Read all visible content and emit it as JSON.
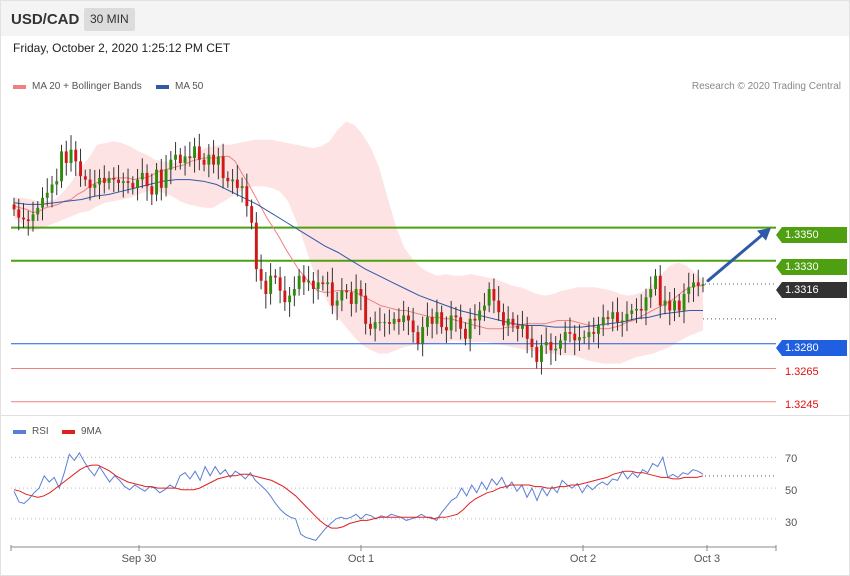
{
  "header": {
    "pair": "USD/CAD",
    "timeframe": "30 MIN"
  },
  "datetime": "Friday, October 2, 2020 1:25:12 PM CET",
  "legend": {
    "main": [
      {
        "label": "MA 20 + Bollinger Bands",
        "color": "#f08080"
      },
      {
        "label": "MA 50",
        "color": "#2e5aa8"
      }
    ],
    "rsi": [
      {
        "label": "RSI",
        "color": "#5b7fd6"
      },
      {
        "label": "9MA",
        "color": "#e02020"
      }
    ]
  },
  "credit": "Research © 2020 Trading Central",
  "levels": {
    "r2": {
      "value": "1.3350",
      "color": "#4ea010"
    },
    "r1": {
      "value": "1.3330",
      "color": "#4ea010"
    },
    "last": {
      "value": "1.3316",
      "color": "#333333"
    },
    "s1": {
      "value": "1.3280",
      "color": "#1f5fe0"
    },
    "s2": {
      "value": "1.3265",
      "color": "#e01010"
    },
    "s3": {
      "value": "1.3245",
      "color": "#e01010"
    }
  },
  "rsi_levels": [
    "70",
    "50",
    "30"
  ],
  "x_labels": [
    "Sep 30",
    "Oct 1",
    "Oct 2",
    "Oct 3"
  ],
  "chart_data": [
    {
      "type": "candlestick",
      "title": "USD/CAD",
      "timeframe": "30 MIN",
      "ylim": [
        1.324,
        1.3427
      ],
      "horizontal_levels": [
        1.335,
        1.333,
        1.3316,
        1.328,
        1.3265,
        1.3245
      ],
      "last_price": 1.3316,
      "x_labels": [
        "Sep 30",
        "Oct 1",
        "Oct 2",
        "Oct 3"
      ],
      "forecast_arrow": {
        "from": 1.3318,
        "to": 1.335
      },
      "indicators": [
        "MA 20 + Bollinger Bands",
        "MA 50"
      ],
      "close": [
        1.3361,
        1.3356,
        1.3355,
        1.3354,
        1.3358,
        1.3362,
        1.3368,
        1.3371,
        1.3376,
        1.3378,
        1.3396,
        1.3389,
        1.3397,
        1.339,
        1.3381,
        1.3379,
        1.3374,
        1.3376,
        1.338,
        1.3377,
        1.338,
        1.3379,
        1.3377,
        1.3378,
        1.3377,
        1.3374,
        1.3379,
        1.3383,
        1.3375,
        1.337,
        1.3385,
        1.3374,
        1.3385,
        1.3391,
        1.3394,
        1.3389,
        1.3393,
        1.3392,
        1.3399,
        1.3391,
        1.3388,
        1.3394,
        1.3388,
        1.3393,
        1.338,
        1.3378,
        1.3379,
        1.3374,
        1.3375,
        1.3363,
        1.3353,
        1.3325,
        1.3318,
        1.331,
        1.3321,
        1.332,
        1.3312,
        1.3305,
        1.3309,
        1.3313,
        1.3321,
        1.3317,
        1.3318,
        1.3313,
        1.3317,
        1.3316,
        1.3317,
        1.3303,
        1.3306,
        1.3312,
        1.3311,
        1.3304,
        1.3313,
        1.3309,
        1.3292,
        1.3289,
        1.3293,
        1.3293,
        1.3293,
        1.3292,
        1.3295,
        1.3293,
        1.3297,
        1.3294,
        1.3287,
        1.328,
        1.329,
        1.3296,
        1.3292,
        1.3299,
        1.329,
        1.3288,
        1.3297,
        1.3296,
        1.3289,
        1.3283,
        1.3295,
        1.3294,
        1.33,
        1.3303,
        1.3313,
        1.3306,
        1.3299,
        1.3291,
        1.3295,
        1.3291,
        1.3289,
        1.3291,
        1.3283,
        1.3278,
        1.3269,
        1.3279,
        1.3281,
        1.3276,
        1.3277,
        1.3282,
        1.3287,
        1.3286,
        1.3282,
        1.3284,
        1.3284,
        1.3287,
        1.3286,
        1.3291,
        1.3296,
        1.3295,
        1.3299,
        1.3293,
        1.3294,
        1.3298,
        1.33,
        1.3301,
        1.33,
        1.3308,
        1.3313,
        1.3321,
        1.3303,
        1.3306,
        1.33,
        1.3306,
        1.33,
        1.331,
        1.3314,
        1.3317,
        1.3315,
        1.3316
      ],
      "ma20": [
        1.3363,
        1.3362,
        1.3361,
        1.3359,
        1.336,
        1.3362,
        1.3363,
        1.3364,
        1.3366,
        1.3367,
        1.337,
        1.3372,
        1.3375,
        1.3377,
        1.3378,
        1.3379,
        1.338,
        1.338,
        1.338,
        1.3379,
        1.338,
        1.338,
        1.3382,
        1.3384,
        1.3385,
        1.3386,
        1.3387,
        1.3388,
        1.339,
        1.3391,
        1.3392,
        1.3392,
        1.3392,
        1.3393,
        1.3393,
        1.339,
        1.3383,
        1.3377,
        1.337,
        1.3363,
        1.3356,
        1.335,
        1.3344,
        1.3337,
        1.3331,
        1.3325,
        1.332,
        1.3316,
        1.3312,
        1.3311,
        1.3311,
        1.3312,
        1.3312,
        1.3312,
        1.3311,
        1.3309,
        1.3307,
        1.3305,
        1.3303,
        1.3302,
        1.3301,
        1.33,
        1.33,
        1.3299,
        1.3298,
        1.3297,
        1.3296,
        1.3296,
        1.3295,
        1.3295,
        1.3294,
        1.3293,
        1.3292,
        1.3291,
        1.329,
        1.3289,
        1.3289,
        1.3289,
        1.329,
        1.329,
        1.3291,
        1.3292,
        1.3292,
        1.3292,
        1.3292,
        1.3293,
        1.3294,
        1.3294,
        1.3294,
        1.3293,
        1.3292,
        1.3291,
        1.329,
        1.3289,
        1.3289,
        1.329,
        1.3291,
        1.3293,
        1.3294,
        1.3296,
        1.3298,
        1.33,
        1.3302,
        1.3304,
        1.3306,
        1.3309,
        1.3312,
        1.3314,
        1.3315,
        1.3315
      ],
      "ma50": [
        1.3365,
        1.3364,
        1.3364,
        1.3365,
        1.3366,
        1.3367,
        1.3369,
        1.337,
        1.3372,
        1.3374,
        1.3376,
        1.3378,
        1.3379,
        1.3379,
        1.3378,
        1.3376,
        1.3372,
        1.3368,
        1.3364,
        1.3359,
        1.3354,
        1.3349,
        1.3344,
        1.3339,
        1.3335,
        1.333,
        1.3325,
        1.3321,
        1.3317,
        1.3313,
        1.3309,
        1.3306,
        1.3303,
        1.33,
        1.3298,
        1.3296,
        1.3294,
        1.3292,
        1.3291,
        1.3291,
        1.329,
        1.329,
        1.329,
        1.3291,
        1.3292,
        1.3293,
        1.3295,
        1.3296,
        1.3298,
        1.3299,
        1.33,
        1.33
      ],
      "bollinger_upper": [
        1.3368,
        1.3368,
        1.3367,
        1.3366,
        1.3366,
        1.3367,
        1.3372,
        1.3378,
        1.3386,
        1.3392,
        1.34,
        1.3401,
        1.3402,
        1.3401,
        1.3399,
        1.3396,
        1.3394,
        1.3391,
        1.339,
        1.3389,
        1.339,
        1.3392,
        1.3395,
        1.3398,
        1.3399,
        1.34,
        1.34,
        1.3401,
        1.3402,
        1.3403,
        1.3403,
        1.3403,
        1.3402,
        1.3401,
        1.34,
        1.3399,
        1.3398,
        1.3399,
        1.3402,
        1.3409,
        1.3414,
        1.3412,
        1.3406,
        1.3398,
        1.3386,
        1.3368,
        1.3351,
        1.3338,
        1.3331,
        1.3326,
        1.3323,
        1.3321,
        1.3322,
        1.3321,
        1.3321,
        1.3322,
        1.3321,
        1.332,
        1.3319,
        1.3317,
        1.3315,
        1.3314,
        1.3312,
        1.331,
        1.3309,
        1.331,
        1.3312,
        1.3313,
        1.3314,
        1.3314,
        1.3314,
        1.3313,
        1.3312,
        1.331,
        1.3309,
        1.331,
        1.3312,
        1.3316,
        1.3322,
        1.3327,
        1.3329,
        1.3327,
        1.3323,
        1.3318
      ],
      "bollinger_lower": [
        1.3356,
        1.3352,
        1.3348,
        1.3349,
        1.3351,
        1.3353,
        1.3355,
        1.3357,
        1.3359,
        1.336,
        1.3363,
        1.3365,
        1.3366,
        1.3367,
        1.3368,
        1.337,
        1.3372,
        1.3372,
        1.3371,
        1.3369,
        1.3366,
        1.3364,
        1.3363,
        1.3362,
        1.3362,
        1.3365,
        1.3368,
        1.3371,
        1.3374,
        1.3375,
        1.3375,
        1.3374,
        1.3372,
        1.3366,
        1.3354,
        1.334,
        1.3325,
        1.3313,
        1.3303,
        1.3296,
        1.329,
        1.3284,
        1.3279,
        1.3276,
        1.3274,
        1.3274,
        1.3276,
        1.3278,
        1.3279,
        1.328,
        1.328,
        1.328,
        1.3281,
        1.3282,
        1.3281,
        1.3281,
        1.3281,
        1.3281,
        1.328,
        1.3279,
        1.3278,
        1.3277,
        1.3276,
        1.3275,
        1.3274,
        1.3274,
        1.3273,
        1.3273,
        1.3272,
        1.327,
        1.3269,
        1.3268,
        1.3268,
        1.3268,
        1.327,
        1.3272,
        1.3273,
        1.3274,
        1.3276,
        1.3278,
        1.3281,
        1.3284,
        1.3286,
        1.3288
      ]
    },
    {
      "type": "line",
      "title": "RSI",
      "ylim": [
        13,
        80
      ],
      "y_ticks": [
        70,
        50,
        30
      ],
      "series": [
        {
          "name": "RSI",
          "values": [
            48,
            41,
            40,
            43,
            47,
            50,
            58,
            54,
            57,
            50,
            60,
            72,
            68,
            73,
            67,
            62,
            58,
            64,
            59,
            54,
            58,
            55,
            51,
            49,
            52,
            50,
            48,
            51,
            50,
            47,
            49,
            52,
            50,
            58,
            60,
            56,
            61,
            55,
            64,
            58,
            64,
            59,
            62,
            57,
            61,
            59,
            56,
            60,
            55,
            52,
            49,
            45,
            40,
            36,
            33,
            31,
            30,
            20,
            18,
            17,
            16,
            20,
            24,
            27,
            30,
            31,
            30,
            31,
            33,
            30,
            33,
            32,
            30,
            32,
            31,
            33,
            32,
            31,
            29,
            30,
            31,
            33,
            31,
            31,
            29,
            34,
            38,
            42,
            44,
            50,
            45,
            52,
            47,
            54,
            49,
            56,
            52,
            57,
            50,
            54,
            48,
            52,
            44,
            50,
            42,
            50,
            45,
            51,
            47,
            55,
            52,
            50,
            53,
            47,
            52,
            49,
            52,
            54,
            52,
            56,
            55,
            61,
            56,
            60,
            57,
            62,
            60,
            66,
            64,
            70,
            57,
            59,
            57,
            60,
            59,
            62,
            61,
            59
          ]
        },
        {
          "name": "9MA",
          "values": [
            49,
            48,
            46,
            45,
            44,
            45,
            47,
            50,
            53,
            56,
            59,
            62,
            64,
            65,
            65,
            63,
            61,
            58,
            56,
            54,
            53,
            52,
            51,
            51,
            50,
            50,
            50,
            50,
            49,
            49,
            49,
            50,
            52,
            54,
            56,
            57,
            58,
            58,
            59,
            59,
            58,
            57,
            56,
            55,
            53,
            51,
            48,
            45,
            41,
            37,
            33,
            29,
            26,
            24,
            24,
            25,
            27,
            28,
            29,
            29,
            30,
            31,
            31,
            31,
            31,
            31,
            31,
            31,
            31,
            31,
            30,
            31,
            31,
            32,
            33,
            36,
            40,
            43,
            45,
            47,
            48,
            50,
            51,
            52,
            52,
            52,
            52,
            51,
            51,
            50,
            50,
            51,
            51,
            52,
            52,
            53,
            54,
            55,
            56,
            57,
            59,
            60,
            61,
            61,
            60,
            60,
            59,
            58,
            57,
            57,
            56,
            56,
            57,
            57,
            57,
            58
          ]
        }
      ]
    }
  ]
}
